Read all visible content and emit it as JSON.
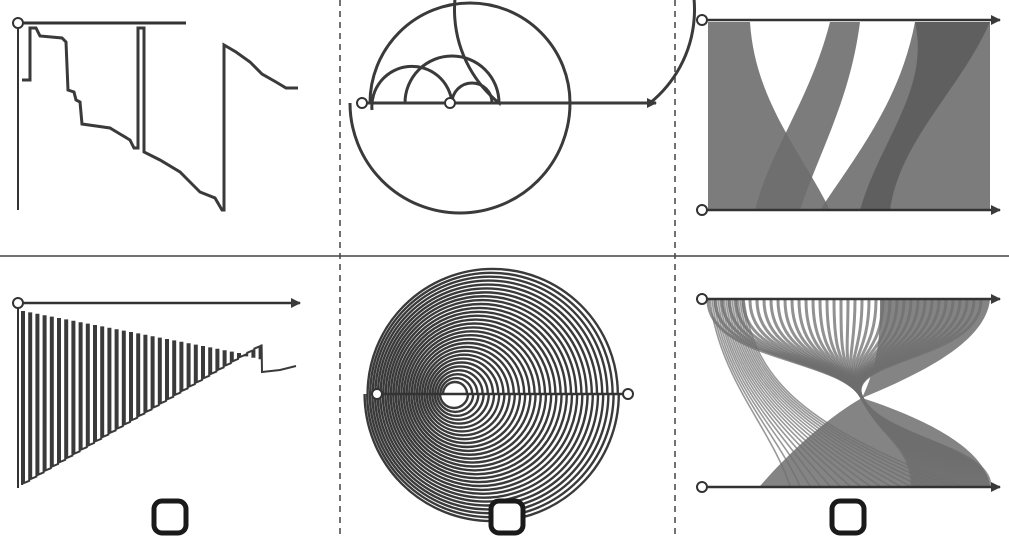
{
  "figure": {
    "layout": {
      "rows": 2,
      "cols": 3
    },
    "line_color": "#3a3a3a",
    "fill_color": "#6e6e6e",
    "panels": [
      {
        "name": "step-trace-sparse",
        "kind": "step-trace"
      },
      {
        "name": "arc-spiral-sparse",
        "kind": "arc-spiral"
      },
      {
        "name": "parallel-ribbons-sparse",
        "kind": "ribbons"
      },
      {
        "name": "step-trace-dense",
        "kind": "step-trace"
      },
      {
        "name": "arc-spiral-dense",
        "kind": "arc-spiral"
      },
      {
        "name": "parallel-ribbons-dense",
        "kind": "ribbons"
      }
    ],
    "selectors": [
      {
        "name": "checkbox-col-1",
        "checked": false
      },
      {
        "name": "checkbox-col-2",
        "checked": false
      },
      {
        "name": "checkbox-col-3",
        "checked": false
      }
    ]
  }
}
